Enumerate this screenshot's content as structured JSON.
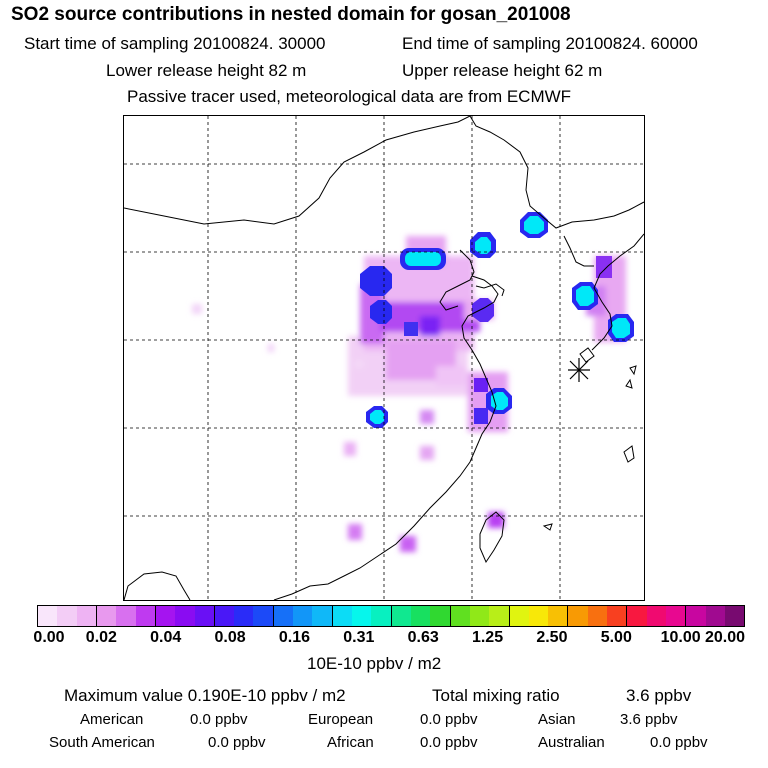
{
  "title": "SO2 source contributions in nested domain for gosan_201008",
  "header": {
    "start_time": "Start time of sampling 20100824. 30000",
    "end_time": "End time of sampling 20100824. 60000",
    "lower_height": "Lower release height   82 m",
    "upper_height": "Upper release height   62 m",
    "tracer_note": "Passive tracer used, meteorological data are from ECMWF"
  },
  "colors": {
    "scale": [
      "#f9e6fb",
      "#f3cdf6",
      "#eeb3f3",
      "#e899ee",
      "#d870ef",
      "#bf3af0",
      "#a514f0",
      "#8a0cf2",
      "#6a10f5",
      "#4a18f7",
      "#2a2cf8",
      "#1c4af8",
      "#1670f8",
      "#1296f8",
      "#10b8f8",
      "#0cdcf6",
      "#06f6ec",
      "#08f0c0",
      "#10e890",
      "#18e060",
      "#30d830",
      "#60e020",
      "#90e818",
      "#b8ee18",
      "#e0f410",
      "#f8e808",
      "#f8c004",
      "#f89a04",
      "#f87010",
      "#f84020",
      "#f81840",
      "#f00a70",
      "#e80890",
      "#c806a0",
      "#a00a90",
      "#780a70"
    ],
    "hotspot_core": "#00e8f8",
    "hotspot_ring": "#2828f0"
  },
  "colorbar": {
    "tick_labels": [
      "0.00",
      "0.02",
      "0.04",
      "0.08",
      "0.16",
      "0.31",
      "0.63",
      "1.25",
      "2.50",
      "5.00",
      "10.00",
      "20.00"
    ],
    "unit": "10E-10 ppbv / m2"
  },
  "stats": {
    "max_value": "Maximum value  0.190E-10 ppbv / m2",
    "total_mixing": "Total mixing ratio",
    "total_value": "3.6 ppbv"
  },
  "regions": [
    {
      "name": "American",
      "value": "0.0 ppbv"
    },
    {
      "name": "European",
      "value": "0.0 ppbv"
    },
    {
      "name": "Asian",
      "value": "3.6 ppbv"
    },
    {
      "name": "South American",
      "value": "0.0 ppbv"
    },
    {
      "name": "African",
      "value": "0.0 ppbv"
    },
    {
      "name": "Australian",
      "value": "0.0 ppbv"
    }
  ],
  "receptor_marker": "gosan-receptor-asterisk"
}
